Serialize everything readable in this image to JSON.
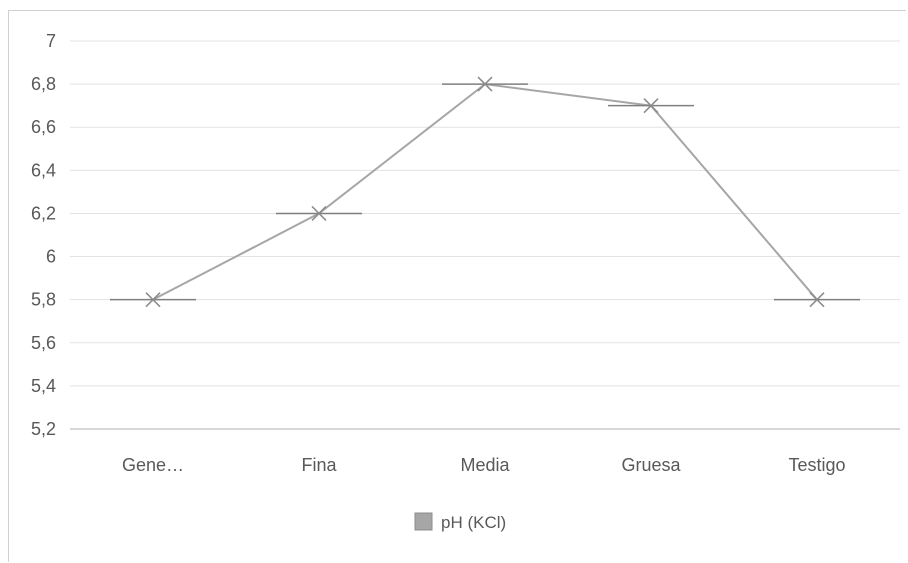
{
  "chart_data": {
    "type": "line",
    "categories": [
      "Gene…",
      "Fina",
      "Media",
      "Gruesa",
      "Testigo"
    ],
    "series": [
      {
        "name": "pH (KCl)",
        "values": [
          5.8,
          6.2,
          6.8,
          6.7,
          5.8
        ],
        "color": "#a6a6a6",
        "marker": "x-with-dash"
      }
    ],
    "ylim": [
      5.2,
      7
    ],
    "yticks": [
      "5,2",
      "5,4",
      "5,6",
      "5,8",
      "6",
      "6,2",
      "6,4",
      "6,6",
      "6,8",
      "7"
    ],
    "ytick_values": [
      5.2,
      5.4,
      5.6,
      5.8,
      6.0,
      6.2,
      6.4,
      6.6,
      6.8,
      7.0
    ],
    "grid": true,
    "legend": "bottom",
    "gridColor": "#e3e3e3",
    "axisColor": "#bfbfbf"
  }
}
